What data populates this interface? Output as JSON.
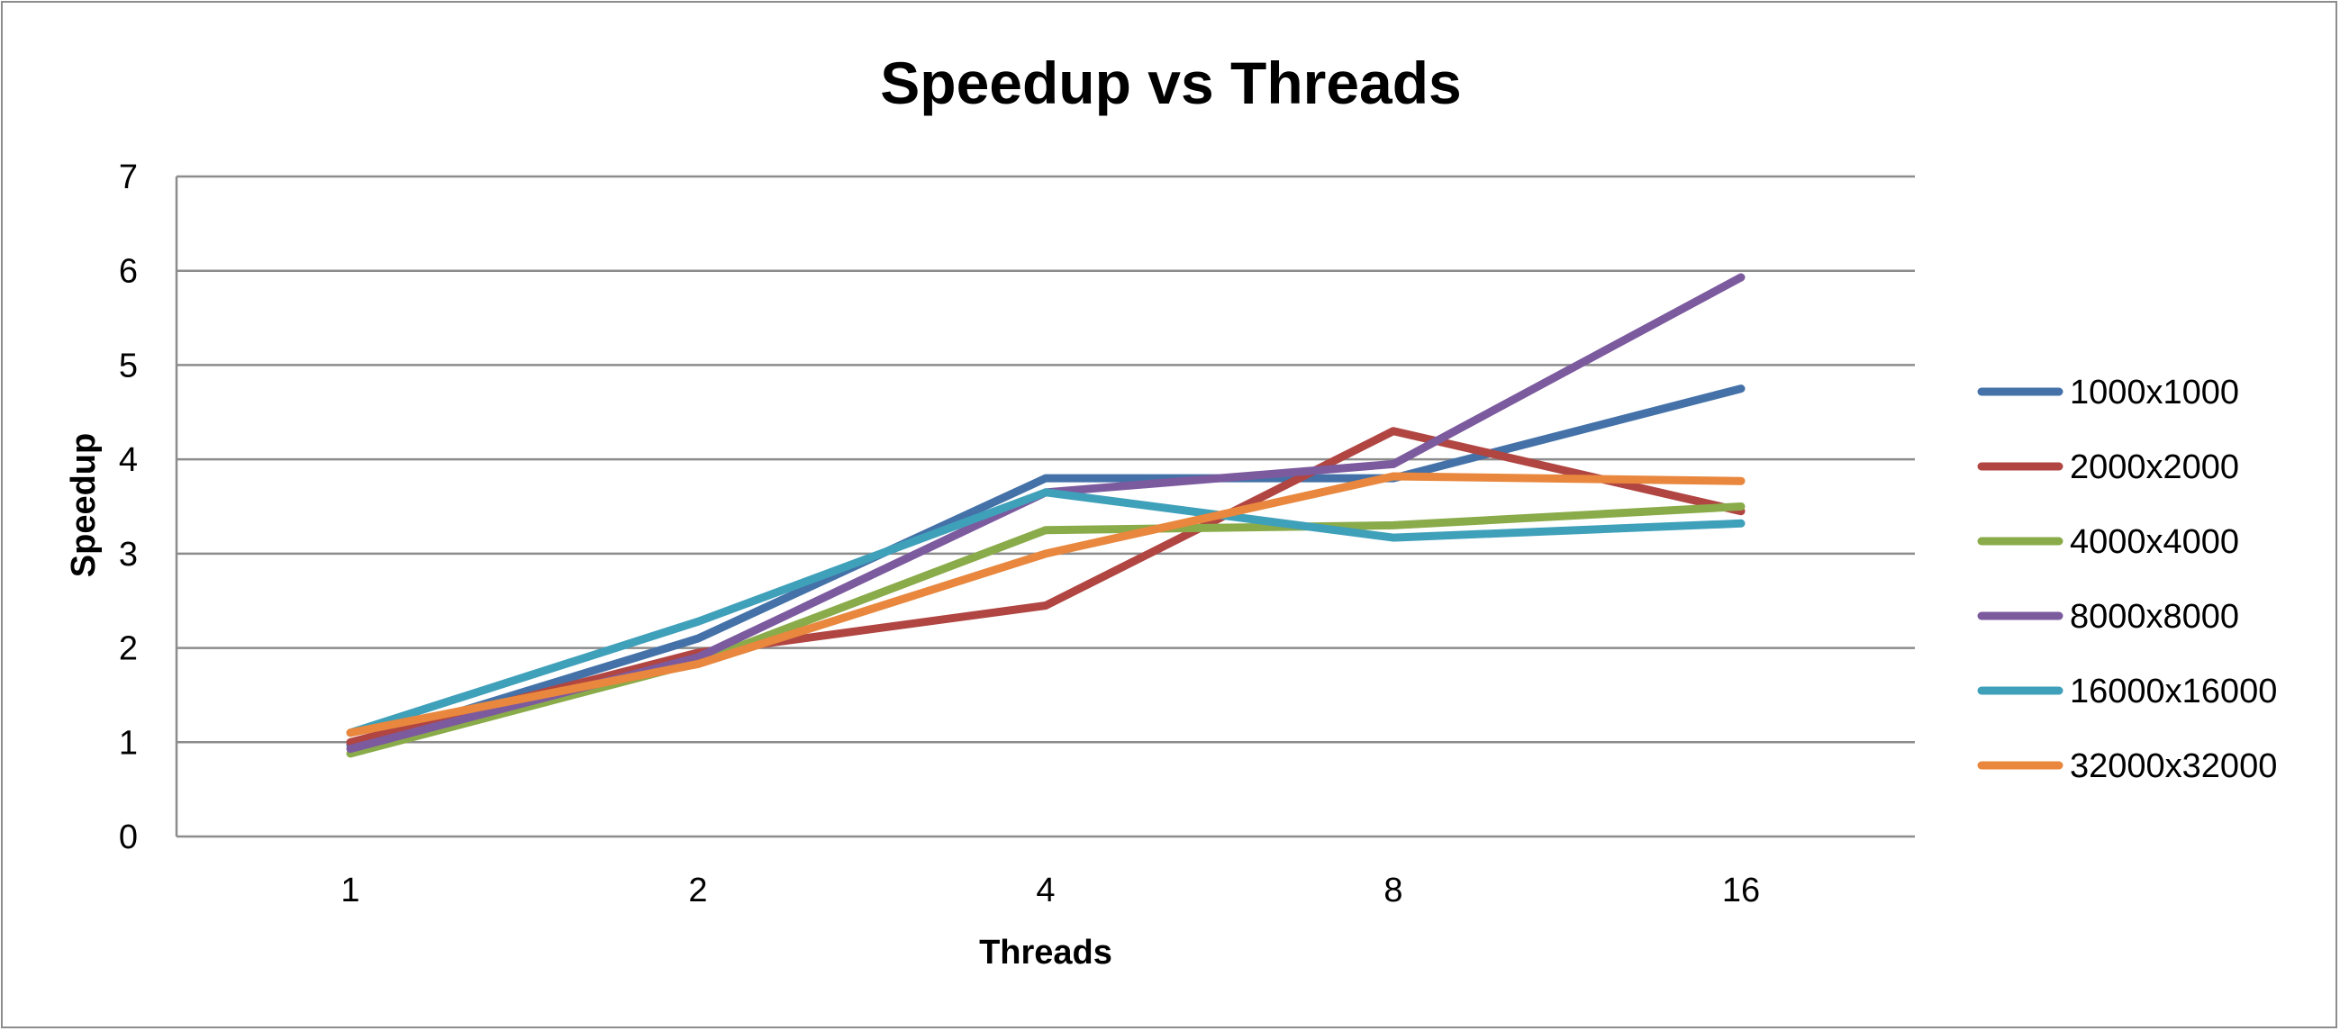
{
  "chart_data": {
    "type": "line",
    "title": "Speedup vs Threads",
    "xlabel": "Threads",
    "ylabel": "Speedup",
    "categories": [
      "1",
      "2",
      "4",
      "8",
      "16"
    ],
    "ylim": [
      0,
      7
    ],
    "yticks": [
      "0",
      "1",
      "2",
      "3",
      "4",
      "5",
      "6",
      "7"
    ],
    "grid": true,
    "legend_position": "right",
    "series": [
      {
        "name": "1000x1000",
        "color": "#4472A8",
        "values": [
          0.97,
          2.1,
          3.8,
          3.8,
          4.75
        ]
      },
      {
        "name": "2000x2000",
        "color": "#B04542",
        "values": [
          1.0,
          1.95,
          2.45,
          4.3,
          3.45
        ]
      },
      {
        "name": "4000x4000",
        "color": "#8AAB4A",
        "values": [
          0.88,
          1.85,
          3.25,
          3.3,
          3.5
        ]
      },
      {
        "name": "8000x8000",
        "color": "#7C5A9E",
        "values": [
          0.93,
          1.9,
          3.65,
          3.95,
          5.93
        ]
      },
      {
        "name": "16000x16000",
        "color": "#3FA0BA",
        "values": [
          1.1,
          2.28,
          3.65,
          3.17,
          3.32
        ]
      },
      {
        "name": "32000x32000",
        "color": "#E8873D",
        "values": [
          1.1,
          1.83,
          3.0,
          3.82,
          3.77
        ]
      }
    ]
  }
}
